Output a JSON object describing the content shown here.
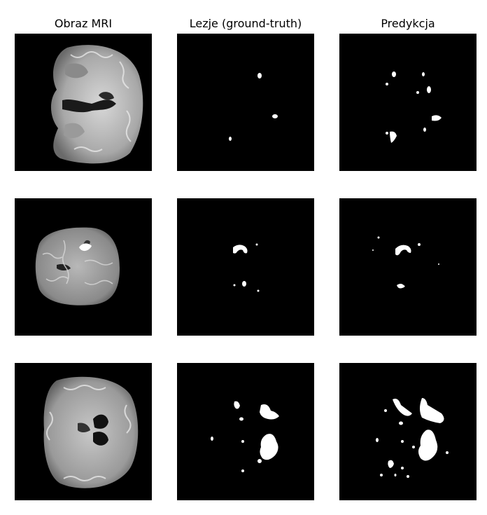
{
  "figure": {
    "columns": [
      {
        "title": "Obraz MRI"
      },
      {
        "title": "Lezje (ground-truth)"
      },
      {
        "title": "Predykcja"
      }
    ],
    "rows": [
      {
        "mri": "coronal-brain-slice",
        "ground_truth": "lesion-mask",
        "prediction": "predicted-mask"
      },
      {
        "mri": "axial-brain-slice",
        "ground_truth": "lesion-mask",
        "prediction": "predicted-mask"
      },
      {
        "mri": "axial-brain-slice",
        "ground_truth": "lesion-mask",
        "prediction": "predicted-mask"
      }
    ],
    "colors": {
      "background": "#000000",
      "mask": "#ffffff",
      "tissue": "#b0b0b0"
    }
  }
}
